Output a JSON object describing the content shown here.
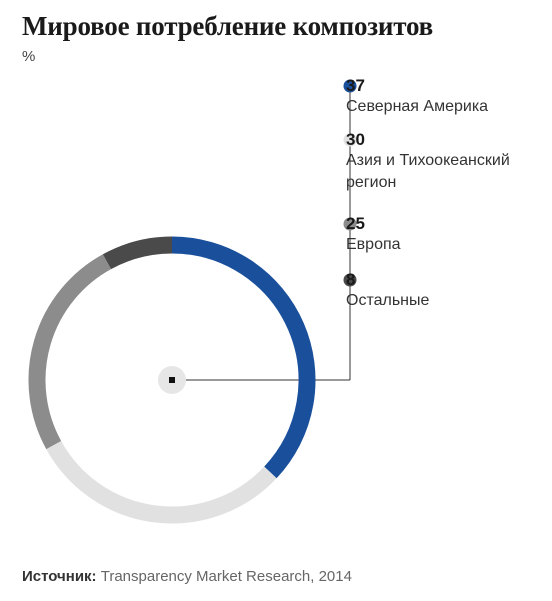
{
  "title": "Мировое потребление композитов",
  "unit": "%",
  "source": {
    "label": "Источник:",
    "text": " Transparency Market Research, 2014"
  },
  "chart_data": {
    "type": "pie",
    "title": "Мировое потребление композитов",
    "unit": "%",
    "slices": [
      {
        "value": "37",
        "label": "Северная Америка",
        "color": "#1a4f9c"
      },
      {
        "value": "30",
        "label": "Азия и Тихоокеанский регион",
        "color": "#e1e1e1"
      },
      {
        "value": "25",
        "label": "Европа",
        "color": "#8c8c8c"
      },
      {
        "value": "8",
        "label": "Остальные",
        "color": "#4a4a4a"
      }
    ]
  }
}
